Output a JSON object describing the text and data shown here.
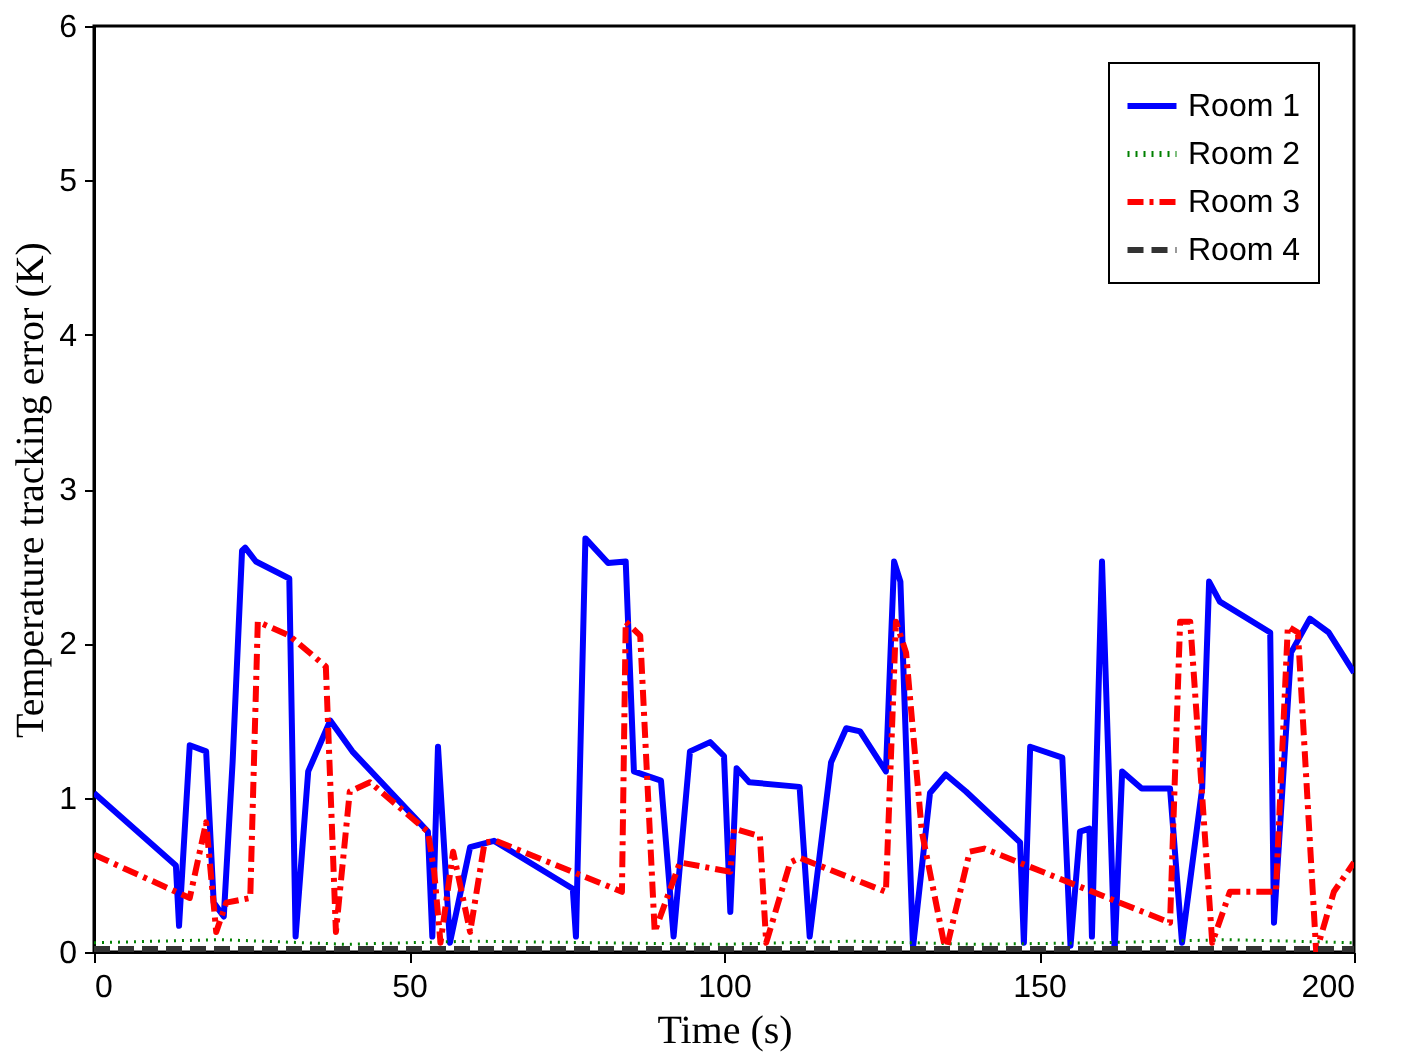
{
  "chart_data": {
    "type": "line",
    "xlabel": "Time (s)",
    "ylabel": "Temperature tracking error (K)",
    "xlim": [
      0,
      200
    ],
    "ylim": [
      0,
      6
    ],
    "xticks": [
      0,
      50,
      100,
      150,
      200
    ],
    "yticks": [
      0,
      1,
      2,
      3,
      4,
      5,
      6
    ],
    "grid": false,
    "legend": "top right",
    "marker": "none",
    "series": [
      {
        "name": "Room 1",
        "color": "#0000ff",
        "line_style": "solid",
        "x": [
          0,
          13,
          13.5,
          15.2,
          17.8,
          19,
          20.6,
          22,
          23.5,
          24,
          25.7,
          31,
          32,
          34,
          37.5,
          41,
          53,
          53.7,
          54.6,
          56.5,
          59.7,
          63.5,
          76,
          76.5,
          78,
          81.6,
          84.4,
          85.7,
          90,
          92,
          94.6,
          97.8,
          100,
          101,
          102,
          104,
          112,
          113.6,
          117,
          119.4,
          121.6,
          125.7,
          127,
          128,
          130,
          132.7,
          135.2,
          138.4,
          147,
          147.6,
          148.6,
          153.7,
          155,
          156.5,
          158,
          158.4,
          160,
          162,
          163.2,
          166.3,
          170.8,
          172.7,
          175.9,
          177,
          178.7,
          186.7,
          187.3,
          190,
          193,
          196,
          200
        ],
        "values": [
          1.03,
          0.56,
          0.17,
          1.34,
          1.3,
          0.32,
          0.23,
          1.23,
          2.6,
          2.62,
          2.53,
          2.42,
          0.1,
          1.17,
          1.5,
          1.3,
          0.78,
          0.1,
          1.33,
          0.06,
          0.68,
          0.72,
          0.41,
          0.1,
          2.68,
          2.52,
          2.53,
          1.17,
          1.11,
          0.1,
          1.3,
          1.36,
          1.27,
          0.26,
          1.19,
          1.1,
          1.07,
          0.1,
          1.23,
          1.45,
          1.43,
          1.17,
          2.53,
          2.4,
          0.03,
          1.03,
          1.15,
          1.04,
          0.71,
          0.06,
          1.33,
          1.26,
          0.04,
          0.78,
          0.8,
          0.1,
          2.53,
          0.0,
          1.17,
          1.06,
          1.06,
          0.06,
          1.06,
          2.4,
          2.27,
          2.07,
          0.19,
          1.94,
          2.16,
          2.07,
          1.81
        ]
      },
      {
        "name": "Room 2",
        "color": "#008000",
        "line_style": "dotted",
        "x": [
          0,
          20,
          40,
          60,
          80,
          100,
          120,
          140,
          160,
          180,
          200
        ],
        "values": [
          0.06,
          0.08,
          0.05,
          0.07,
          0.06,
          0.05,
          0.07,
          0.05,
          0.06,
          0.08,
          0.06
        ]
      },
      {
        "name": "Room 3",
        "color": "#ff0000",
        "line_style": "dashdot",
        "x": [
          0,
          15.2,
          17.8,
          19.4,
          21,
          24.8,
          26,
          31,
          36.8,
          38.4,
          40.6,
          43.8,
          53,
          54,
          55,
          57,
          59.7,
          62,
          63.8,
          83.8,
          84.4,
          86.7,
          89,
          93,
          101,
          101.6,
          105.7,
          106.7,
          110.5,
          112,
          125.7,
          127.3,
          128.9,
          131.4,
          135.2,
          139,
          141.3,
          170.8,
          172.4,
          174,
          177.5,
          180.3,
          185,
          187.6,
          189.5,
          191.1,
          194,
          196.8,
          200
        ],
        "values": [
          0.63,
          0.35,
          0.84,
          0.13,
          0.32,
          0.35,
          2.14,
          2.05,
          1.85,
          0.13,
          1.04,
          1.1,
          0.78,
          0.52,
          0.06,
          0.65,
          0.13,
          0.71,
          0.72,
          0.39,
          2.14,
          2.05,
          0.13,
          0.58,
          0.52,
          0.8,
          0.75,
          0.06,
          0.58,
          0.61,
          0.39,
          2.14,
          1.94,
          0.78,
          0.0,
          0.65,
          0.67,
          0.19,
          2.14,
          2.14,
          0.06,
          0.39,
          0.39,
          0.39,
          2.11,
          2.07,
          0.0,
          0.39,
          0.58
        ]
      },
      {
        "name": "Room 4",
        "color": "#333333",
        "line_style": "dashed",
        "x": [
          0,
          25,
          50,
          75,
          100,
          125,
          150,
          175,
          200
        ],
        "values": [
          0.02,
          0.02,
          0.02,
          0.02,
          0.02,
          0.02,
          0.02,
          0.02,
          0.02
        ]
      }
    ]
  }
}
